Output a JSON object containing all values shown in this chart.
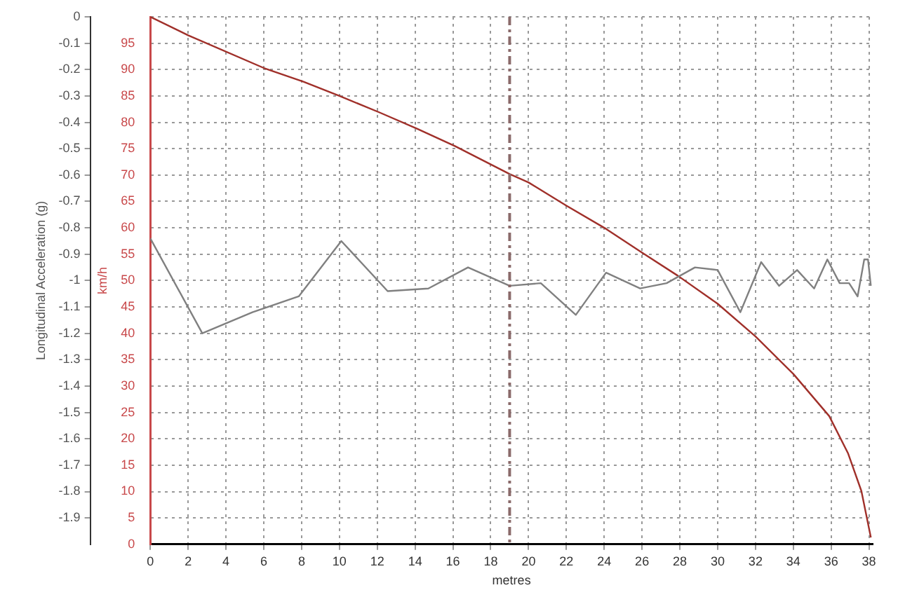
{
  "chart_data": {
    "type": "line",
    "xlabel": "metres",
    "ylabel": "Longitudinal Acceleration (g)",
    "y2label": "km/h",
    "xlim": [
      0,
      38.2
    ],
    "xticks": [
      0,
      2,
      4,
      6,
      8,
      10,
      12,
      14,
      16,
      18,
      20,
      22,
      24,
      26,
      28,
      30,
      32,
      34,
      36,
      38
    ],
    "ylim": [
      -2,
      0
    ],
    "yticks": [
      0,
      -0.1,
      -0.2,
      -0.3,
      -0.4,
      -0.5,
      -0.6,
      -0.7,
      -0.8,
      -0.9,
      -1,
      -1.1,
      -1.2,
      -1.3,
      -1.4,
      -1.5,
      -1.6,
      -1.7,
      -1.8,
      -1.9
    ],
    "y2lim": [
      0,
      100
    ],
    "y2ticks": [
      0,
      5,
      10,
      15,
      20,
      25,
      30,
      35,
      40,
      45,
      50,
      55,
      60,
      65,
      70,
      75,
      80,
      85,
      90,
      95
    ],
    "grid": true,
    "legend": false,
    "marker": "none",
    "line_style": "solid",
    "ref_lines": [
      {
        "axis": "x",
        "value": 19,
        "color": "#8a6a6a",
        "line_style": "dashed"
      }
    ],
    "series": [
      {
        "color": "#808080",
        "axis": "y",
        "x": [
          0,
          2.75,
          5.4,
          7.85,
          10.1,
          12.55,
          14.7,
          16.8,
          19.0,
          20.65,
          22.5,
          24.1,
          25.9,
          27.3,
          28.8,
          30.0,
          31.2,
          32.3,
          33.25,
          34.2,
          35.1,
          35.8,
          36.45,
          36.95,
          37.4,
          37.75,
          37.95,
          38.1
        ],
        "values": [
          -0.84,
          -1.2,
          -1.12,
          -1.06,
          -0.85,
          -1.04,
          -1.03,
          -0.95,
          -1.02,
          -1.01,
          -1.13,
          -0.97,
          -1.03,
          -1.01,
          -0.95,
          -0.96,
          -1.12,
          -0.93,
          -1.02,
          -0.96,
          -1.03,
          -0.92,
          -1.01,
          -1.01,
          -1.06,
          -0.92,
          -0.92,
          -1.02
        ]
      },
      {
        "color": "#a0302a",
        "axis": "y2",
        "x": [
          0,
          2,
          6,
          8.1,
          10,
          12.1,
          14.1,
          16.1,
          19,
          20,
          22,
          24.1,
          26,
          27.9,
          30,
          32,
          34,
          35.9,
          36.9,
          37.6,
          38.1
        ],
        "values": [
          100,
          96.5,
          90.3,
          87.7,
          85,
          81.9,
          78.8,
          75.5,
          70.2,
          68.6,
          64.2,
          59.8,
          55.3,
          50.9,
          45.6,
          39.4,
          32.3,
          24.3,
          17.2,
          10.1,
          1.3
        ]
      }
    ]
  }
}
